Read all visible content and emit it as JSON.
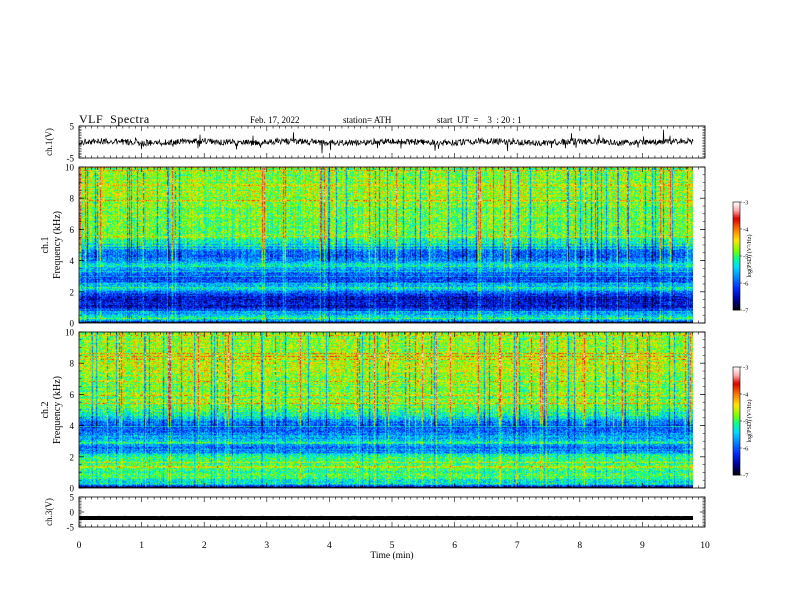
{
  "header": {
    "title": "VLF  Spectra",
    "date": "Feb. 17, 2022",
    "station": "station= ATH",
    "start": "start  UT  =    3  : 20 : 1"
  },
  "colorbar": {
    "ticks": [
      "-3",
      "-4",
      "-5",
      "-6",
      "-7"
    ],
    "label": "log(PSD) (V²/Hz)",
    "colors": [
      "#000000",
      "#0000cc",
      "#0066ff",
      "#00ddff",
      "#00ff66",
      "#aaff00",
      "#ffdd00",
      "#ff6600",
      "#dd0000",
      "#ffbbbb",
      "#ffffff"
    ]
  },
  "chart_data": [
    {
      "type": "line",
      "name": "ch1-time-series",
      "ylabel": "ch.1(V)",
      "ylim": [
        -5,
        5
      ],
      "yticks": [
        "5",
        "-5"
      ],
      "xlim": [
        0,
        10
      ],
      "approx_level": 0,
      "approx_amplitude": 1.2
    },
    {
      "type": "heatmap",
      "name": "ch1-spectrogram",
      "ylabel_channel": "ch.1",
      "ylabel": "Frequency (kHz)",
      "ylim": [
        0,
        10
      ],
      "yticks": [
        "0",
        "2",
        "4",
        "6",
        "8",
        "10"
      ],
      "xlim": [
        0,
        10
      ],
      "zlim": [
        -7,
        -3
      ],
      "band_profile": [
        [
          0.0,
          -7.0
        ],
        [
          0.3,
          -5.0
        ],
        [
          0.6,
          -5.6
        ],
        [
          1.0,
          -6.3
        ],
        [
          1.4,
          -6.4
        ],
        [
          1.9,
          -6.2
        ],
        [
          2.2,
          -5.4
        ],
        [
          2.8,
          -6.1
        ],
        [
          3.3,
          -6.0
        ],
        [
          3.7,
          -5.2
        ],
        [
          4.3,
          -6.0
        ],
        [
          4.9,
          -5.6
        ],
        [
          5.5,
          -4.9
        ],
        [
          7.0,
          -4.8
        ],
        [
          8.5,
          -4.7
        ],
        [
          10.0,
          -4.8
        ]
      ]
    },
    {
      "type": "heatmap",
      "name": "ch2-spectrogram",
      "ylabel_channel": "ch.2",
      "ylabel": "Frequency (kHz)",
      "ylim": [
        0,
        10
      ],
      "yticks": [
        "0",
        "2",
        "4",
        "6",
        "8",
        "10"
      ],
      "xlim": [
        0,
        10
      ],
      "zlim": [
        -7,
        -3
      ],
      "band_profile": [
        [
          0.0,
          -7.0
        ],
        [
          0.3,
          -5.3
        ],
        [
          0.8,
          -5.0
        ],
        [
          1.4,
          -5.1
        ],
        [
          2.0,
          -5.0
        ],
        [
          2.5,
          -6.0
        ],
        [
          3.0,
          -5.4
        ],
        [
          3.5,
          -5.8
        ],
        [
          4.1,
          -6.0
        ],
        [
          4.6,
          -5.3
        ],
        [
          5.2,
          -4.9
        ],
        [
          6.5,
          -4.8
        ],
        [
          8.0,
          -4.6
        ],
        [
          10.0,
          -4.8
        ]
      ]
    },
    {
      "type": "line",
      "name": "ch3-time-series",
      "ylabel": "ch.3(V)",
      "ylim": [
        -5,
        5
      ],
      "yticks": [
        "5",
        "0",
        "-5"
      ],
      "xlim": [
        0,
        10
      ],
      "approx_level": -2,
      "approx_amplitude": 0.05
    }
  ],
  "xaxis": {
    "label": "Time  (min)",
    "ticks": [
      "0",
      "1",
      "2",
      "3",
      "4",
      "5",
      "6",
      "7",
      "8",
      "9",
      "10"
    ]
  }
}
